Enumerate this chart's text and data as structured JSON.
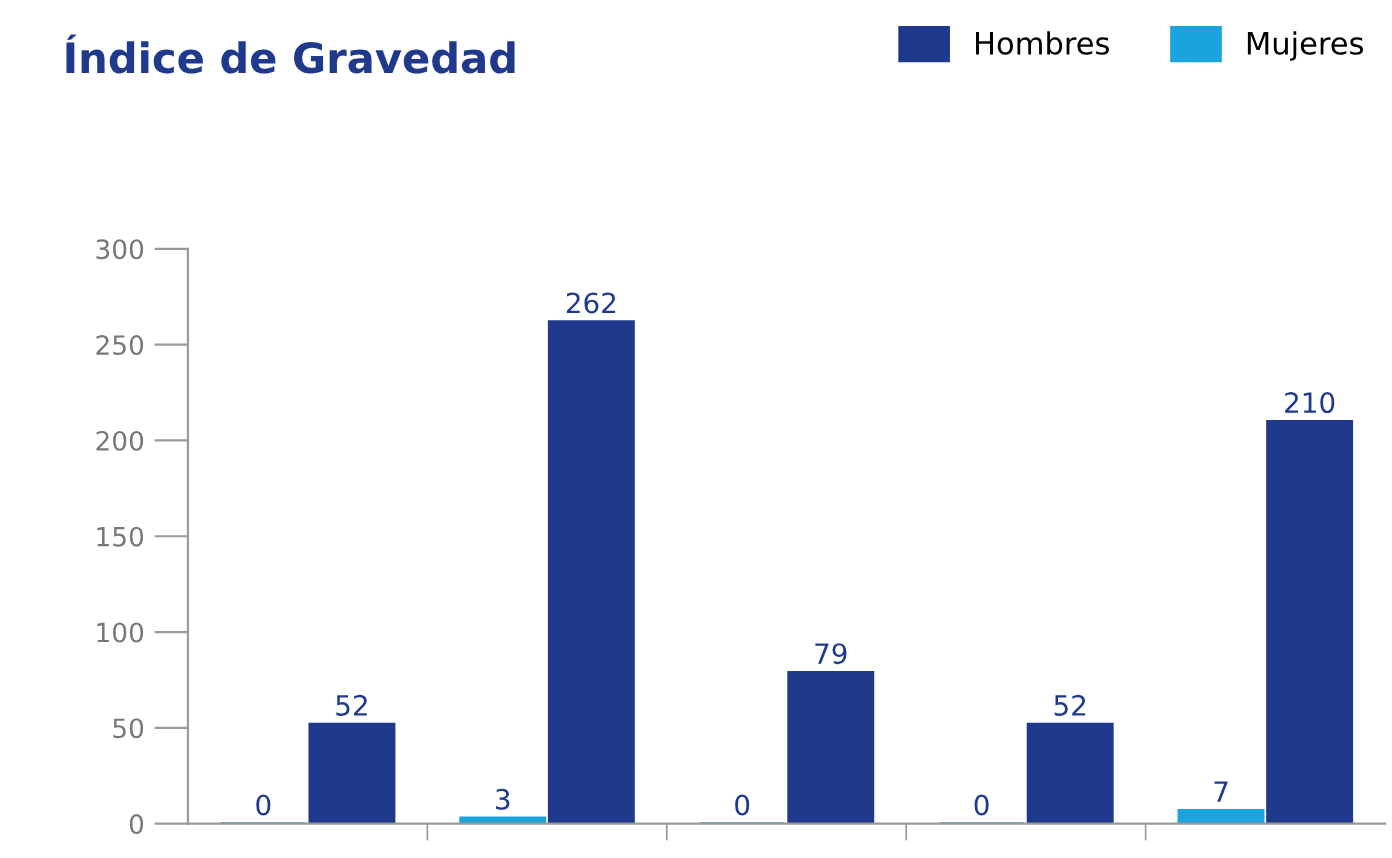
{
  "chart_data": {
    "type": "bar",
    "title": "Índice de Gravedad",
    "categories": [
      null,
      null,
      null,
      null,
      null
    ],
    "series": [
      {
        "name": "Mujeres",
        "color": "#1ba3dd",
        "values": [
          0,
          3,
          0,
          0,
          7
        ]
      },
      {
        "name": "Hombres",
        "color": "#1f398c",
        "values": [
          52,
          262,
          79,
          52,
          210
        ]
      }
    ],
    "ylim": [
      0,
      300
    ],
    "yticks": [
      0,
      50,
      100,
      150,
      200,
      250,
      300
    ],
    "grid": false,
    "legend": "top right",
    "data_labels": true
  }
}
